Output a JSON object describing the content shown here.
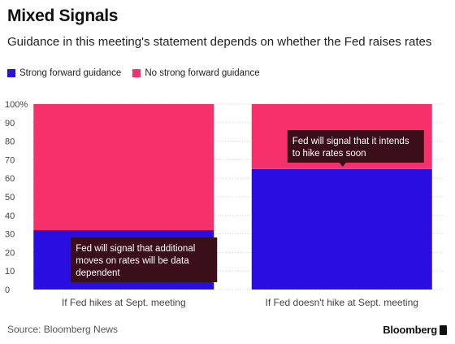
{
  "title": "Mixed Signals",
  "subtitle": "Guidance in this meeting's statement depends on whether the Fed raises rates",
  "source": "Source: Bloomberg News",
  "brand": "Bloomberg",
  "colors": {
    "strong": "#2a0ee0",
    "no_strong": "#f5306a",
    "annotation_bg": "#3a0f1a",
    "grid": "#d0d0d0"
  },
  "chart_data": {
    "type": "bar",
    "stacked": true,
    "categories": [
      "If Fed hikes at Sept. meeting",
      "If Fed doesn't hike at Sept. meeting"
    ],
    "series": [
      {
        "name": "Strong forward guidance",
        "values": [
          32,
          65
        ]
      },
      {
        "name": "No strong forward guidance",
        "values": [
          68,
          35
        ]
      }
    ],
    "yticks": [
      "0",
      "10",
      "20",
      "30",
      "40",
      "50",
      "60",
      "70",
      "80",
      "90",
      "100%"
    ],
    "ylim": [
      0,
      100
    ],
    "grid": true,
    "legend": "top-left",
    "annotations": [
      {
        "lines": [
          "Fed will signal that additional",
          "moves on rates will be data",
          "dependent"
        ]
      },
      {
        "lines": [
          "Fed will signal that it intends",
          "to hike rates soon"
        ]
      }
    ]
  }
}
